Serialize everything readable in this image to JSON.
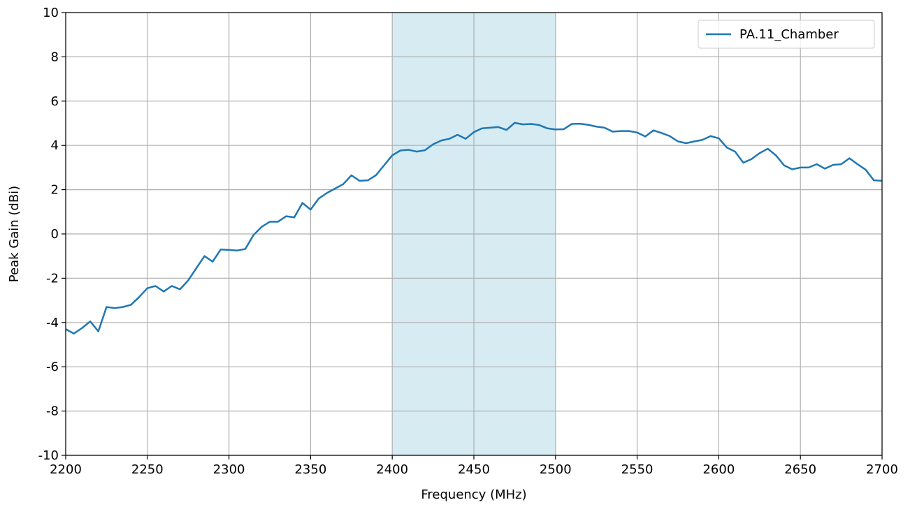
{
  "chart_data": {
    "type": "line",
    "title": "",
    "xlabel": "Frequency (MHz)",
    "ylabel": "Peak Gain (dBi)",
    "xlim": [
      2200,
      2700
    ],
    "ylim": [
      -10,
      10
    ],
    "xticks": [
      2200,
      2250,
      2300,
      2350,
      2400,
      2450,
      2500,
      2550,
      2600,
      2650,
      2700
    ],
    "yticks": [
      -10,
      -8,
      -6,
      -4,
      -2,
      0,
      2,
      4,
      6,
      8,
      10
    ],
    "xtick_labels": [
      "2200",
      "2250",
      "2300",
      "2350",
      "2400",
      "2450",
      "2500",
      "2550",
      "2600",
      "2650",
      "2700"
    ],
    "ytick_labels": [
      "-10",
      "-8",
      "-6",
      "-4",
      "-2",
      "0",
      "2",
      "4",
      "6",
      "8",
      "10"
    ],
    "grid": true,
    "legend_position": "top-right",
    "shaded_band": {
      "x_start": 2400,
      "x_end": 2500,
      "color": "#add8e6"
    },
    "series": [
      {
        "name": "PA.11_Chamber",
        "color": "#1f77b4",
        "x": [
          2200,
          2205,
          2210,
          2215,
          2220,
          2225,
          2230,
          2235,
          2240,
          2245,
          2250,
          2255,
          2260,
          2265,
          2270,
          2275,
          2280,
          2285,
          2290,
          2295,
          2300,
          2305,
          2310,
          2315,
          2320,
          2325,
          2330,
          2335,
          2340,
          2345,
          2350,
          2355,
          2360,
          2365,
          2370,
          2375,
          2380,
          2385,
          2390,
          2395,
          2400,
          2405,
          2410,
          2415,
          2420,
          2425,
          2430,
          2435,
          2440,
          2445,
          2450,
          2455,
          2460,
          2465,
          2470,
          2475,
          2480,
          2485,
          2490,
          2495,
          2500,
          2505,
          2510,
          2515,
          2520,
          2525,
          2530,
          2535,
          2540,
          2545,
          2550,
          2555,
          2560,
          2565,
          2570,
          2575,
          2580,
          2585,
          2590,
          2595,
          2600,
          2605,
          2610,
          2615,
          2620,
          2625,
          2630,
          2635,
          2640,
          2645,
          2650,
          2655,
          2660,
          2665,
          2670,
          2675,
          2680,
          2685,
          2690,
          2695,
          2700
        ],
        "y": [
          -4.3,
          -4.5,
          -4.25,
          -3.95,
          -4.4,
          -3.3,
          -3.35,
          -3.3,
          -3.2,
          -2.85,
          -2.45,
          -2.35,
          -2.6,
          -2.35,
          -2.5,
          -2.1,
          -1.55,
          -1.0,
          -1.25,
          -0.7,
          -0.72,
          -0.75,
          -0.68,
          -0.05,
          0.32,
          0.55,
          0.55,
          0.8,
          0.75,
          1.4,
          1.1,
          1.6,
          1.85,
          2.05,
          2.25,
          2.65,
          2.4,
          2.42,
          2.65,
          3.1,
          3.55,
          3.77,
          3.8,
          3.72,
          3.78,
          4.05,
          4.22,
          4.3,
          4.48,
          4.3,
          4.6,
          4.77,
          4.8,
          4.83,
          4.7,
          5.02,
          4.95,
          4.97,
          4.92,
          4.77,
          4.72,
          4.73,
          4.97,
          4.98,
          4.93,
          4.85,
          4.8,
          4.62,
          4.65,
          4.65,
          4.58,
          4.4,
          4.68,
          4.56,
          4.42,
          4.18,
          4.1,
          4.18,
          4.25,
          4.42,
          4.32,
          3.9,
          3.72,
          3.22,
          3.38,
          3.65,
          3.85,
          3.55,
          3.1,
          2.92,
          3.0,
          3.0,
          3.15,
          2.95,
          3.12,
          3.15,
          3.42,
          3.15,
          2.9,
          2.42,
          2.4
        ]
      }
    ]
  }
}
